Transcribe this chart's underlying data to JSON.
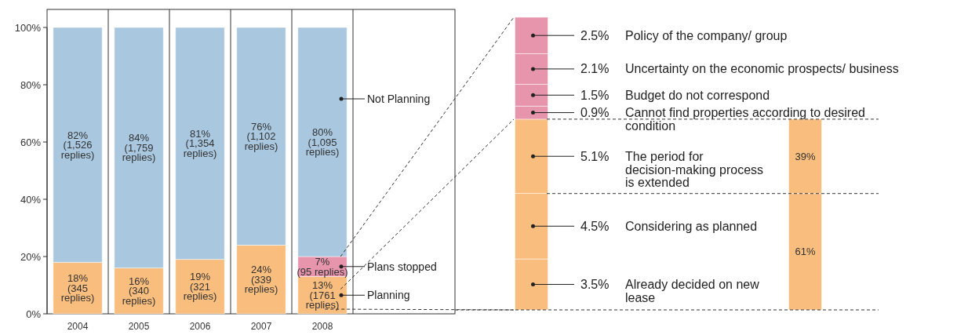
{
  "chart_data": [
    {
      "type": "bar",
      "stacked": true,
      "categories": [
        "2004",
        "2005",
        "2006",
        "2007",
        "2008"
      ],
      "ylim": [
        0,
        100
      ],
      "yticks": [
        {
          "value": 0,
          "label": "0%"
        },
        {
          "value": 20,
          "label": "20%"
        },
        {
          "value": 40,
          "label": "40%"
        },
        {
          "value": 60,
          "label": "60%"
        },
        {
          "value": 80,
          "label": "80%"
        },
        {
          "value": 100,
          "label": "100%"
        }
      ],
      "series": [
        {
          "name": "Planning",
          "color": "#f9bd7e",
          "values": [
            18,
            16,
            19,
            24,
            13
          ],
          "value_labels": [
            "18% (345 replies)",
            "16% (340 replies)",
            "19% (321 replies)",
            "24% (339 replies)",
            "13% (1761 replies)"
          ]
        },
        {
          "name": "Plans stopped",
          "color": "#e795ad",
          "values": [
            null,
            null,
            null,
            null,
            7
          ],
          "value_labels": [
            null,
            null,
            null,
            null,
            "7% (95 replies)"
          ]
        },
        {
          "name": "Not Planning",
          "color": "#a9c8e0",
          "values": [
            82,
            84,
            81,
            76,
            80
          ],
          "value_labels": [
            "82% (1,526 replies)",
            "84% (1,759 replies)",
            "81% (1,354 replies)",
            "76% (1,102 replies)",
            "80% (1,095 replies)"
          ]
        }
      ]
    },
    {
      "type": "bar",
      "stacked": true,
      "categories": [
        null
      ],
      "series": [
        {
          "name": "Already decided on new lease",
          "color": "#f9bd7e",
          "values": [
            3.5
          ],
          "value_labels": [
            "3.5%"
          ]
        },
        {
          "name": "Considering as planned",
          "color": "#f9bd7e",
          "values": [
            4.5
          ],
          "value_labels": [
            "4.5%"
          ]
        },
        {
          "name": "The period for decision-making process is extended",
          "color": "#f9bd7e",
          "values": [
            5.1
          ],
          "value_labels": [
            "5.1%"
          ]
        },
        {
          "name": "Cannot find properties according to desired condition",
          "color": "#e795ad",
          "values": [
            0.9
          ],
          "value_labels": [
            "0.9%"
          ]
        },
        {
          "name": "Budget do not correspond",
          "color": "#e795ad",
          "values": [
            1.5
          ],
          "value_labels": [
            "1.5%"
          ]
        },
        {
          "name": "Uncertainty on the economic prospects/ business",
          "color": "#e795ad",
          "values": [
            2.1
          ],
          "value_labels": [
            "2.1%"
          ]
        },
        {
          "name": "Policy of the company/ group",
          "color": "#e795ad",
          "values": [
            2.5
          ],
          "value_labels": [
            "2.5%"
          ]
        }
      ]
    },
    {
      "type": "bar",
      "stacked": true,
      "categories": [
        null
      ],
      "ref_lines": [
        {
          "axis": "y",
          "value": 61,
          "line_style": "dashed",
          "color": "#333333"
        }
      ],
      "series": [
        {
          "color": "#f9bd7e",
          "values": [
            61
          ],
          "value_labels": [
            "61%"
          ]
        },
        {
          "color": "#f9bd7e",
          "values": [
            39
          ],
          "value_labels": [
            "39%"
          ]
        }
      ]
    }
  ]
}
